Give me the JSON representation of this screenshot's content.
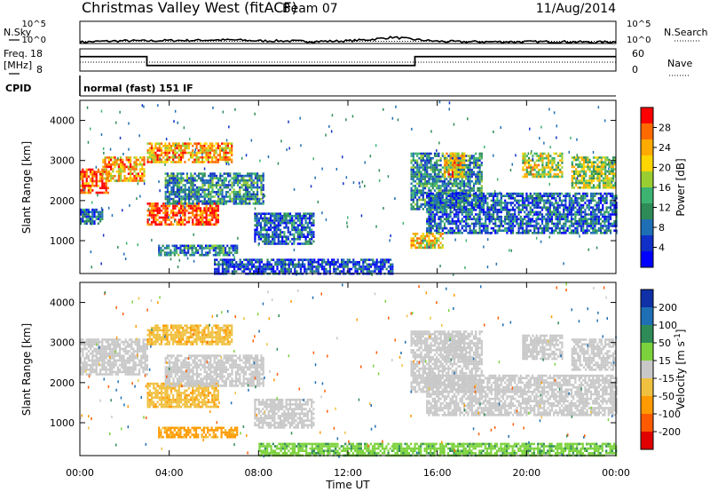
{
  "header": {
    "title": "Christmas Valley West (fitACF)",
    "beam": "Beam 07",
    "date": "11/Aug/2014"
  },
  "noise_panel": {
    "left_label": "N.Sky",
    "right_label": "N.Search",
    "left_ticks": [
      "10^5",
      "10^0"
    ],
    "right_ticks": [
      "10^5",
      "10^0"
    ]
  },
  "freq_panel": {
    "left_label_1": "Freq.",
    "left_label_2": "[MHz]",
    "right_label": "Nave",
    "left_ticks": [
      "18",
      "8"
    ],
    "right_ticks": [
      "60",
      "0"
    ]
  },
  "cpid_panel": {
    "label": "CPID",
    "value": "normal (fast) 151 IF"
  },
  "power_colorbar": {
    "label": "Power [dB]",
    "ticks": [
      "28",
      "24",
      "20",
      "16",
      "12",
      "8",
      "4"
    ],
    "colors": [
      "#ff0000",
      "#ff6a00",
      "#ffaa00",
      "#ffd500",
      "#9acd32",
      "#3cb371",
      "#2e8b57",
      "#1e6fb4",
      "#1030c8",
      "#0000ff"
    ]
  },
  "velocity_colorbar": {
    "label": "Velocity [m s-1]",
    "ticks": [
      "200",
      "100",
      "50",
      "15",
      "-15",
      "-50",
      "-100",
      "-200"
    ],
    "colors": [
      "#1030a8",
      "#1e6fb4",
      "#2e8b57",
      "#7cd23c",
      "#c8c8c8",
      "#f0c040",
      "#ff9a00",
      "#ff5a00",
      "#e00000"
    ]
  },
  "time_axis": {
    "label": "Time UT",
    "ticks": [
      "00:00",
      "04:00",
      "08:00",
      "12:00",
      "16:00",
      "20:00",
      "00:00"
    ]
  },
  "chart_data": [
    {
      "type": "line",
      "name": "noise",
      "title": "Christmas Valley West (fitACF)",
      "xlabel": "",
      "ylabel": "N.Sky",
      "xlim": [
        0,
        24
      ],
      "ylim_log10": [
        0,
        5
      ],
      "series": [
        {
          "name": "N.Sky",
          "x": [
            0,
            1,
            2,
            3,
            4,
            5,
            6,
            7,
            8,
            9,
            10,
            11,
            12,
            13,
            14,
            15,
            16,
            17,
            18,
            19,
            20,
            21,
            22,
            23,
            24
          ],
          "y_log10": [
            0.3,
            0.5,
            0.6,
            0.6,
            0.7,
            0.7,
            0.8,
            0.8,
            0.6,
            0.6,
            0.5,
            0.5,
            0.6,
            0.9,
            1.4,
            0.9,
            0.5,
            0.4,
            0.4,
            0.4,
            0.4,
            0.4,
            0.4,
            0.3,
            0.4
          ]
        }
      ]
    },
    {
      "type": "line",
      "name": "frequency",
      "xlabel": "",
      "ylabel": "Freq. [MHz]",
      "xlim": [
        0,
        24
      ],
      "ylim": [
        8,
        18
      ],
      "series": [
        {
          "name": "Freq.",
          "x": [
            0,
            3,
            3,
            15,
            15,
            24
          ],
          "y": [
            14.5,
            14.5,
            10.5,
            10.5,
            14.5,
            14.5
          ]
        },
        {
          "name": "Nave",
          "x": [
            0,
            24
          ],
          "y": [
            12,
            12
          ]
        }
      ]
    },
    {
      "type": "heatmap",
      "name": "power",
      "xlabel": "",
      "ylabel": "Slant Range [km]",
      "xlim": [
        0,
        24
      ],
      "ylim": [
        180,
        4500
      ],
      "yticks": [
        1000,
        2000,
        3000,
        4000
      ],
      "colorbar": "Power [dB]",
      "clim": [
        0,
        30
      ],
      "regions": [
        {
          "t0": 0.0,
          "t1": 1.3,
          "r0": 2200,
          "r1": 2800,
          "power": 26
        },
        {
          "t0": 0.0,
          "t1": 1.0,
          "r0": 1400,
          "r1": 1800,
          "power": 8
        },
        {
          "t0": 1.0,
          "t1": 2.9,
          "r0": 2500,
          "r1": 3100,
          "power": 22
        },
        {
          "t0": 3.0,
          "t1": 6.8,
          "r0": 2950,
          "r1": 3450,
          "power": 22
        },
        {
          "t0": 3.0,
          "t1": 6.2,
          "r0": 1400,
          "r1": 1950,
          "power": 27
        },
        {
          "t0": 3.8,
          "t1": 8.2,
          "r0": 1950,
          "r1": 2700,
          "power": 10
        },
        {
          "t0": 3.5,
          "t1": 7.0,
          "r0": 650,
          "r1": 900,
          "power": 9
        },
        {
          "t0": 7.8,
          "t1": 10.5,
          "r0": 900,
          "r1": 1700,
          "power": 7
        },
        {
          "t0": 6.0,
          "t1": 14.0,
          "r0": 180,
          "r1": 550,
          "power": 5
        },
        {
          "t0": 14.8,
          "t1": 18.0,
          "r0": 1800,
          "r1": 3200,
          "power": 10
        },
        {
          "t0": 15.5,
          "t1": 24.0,
          "r0": 1200,
          "r1": 2200,
          "power": 7
        },
        {
          "t0": 14.8,
          "t1": 16.2,
          "r0": 800,
          "r1": 1200,
          "power": 20
        },
        {
          "t0": 16.3,
          "t1": 17.2,
          "r0": 2600,
          "r1": 3200,
          "power": 22
        },
        {
          "t0": 19.8,
          "t1": 21.6,
          "r0": 2600,
          "r1": 3200,
          "power": 18
        },
        {
          "t0": 22.0,
          "t1": 24.0,
          "r0": 2300,
          "r1": 3100,
          "power": 16
        }
      ]
    },
    {
      "type": "heatmap",
      "name": "velocity",
      "xlabel": "Time UT",
      "ylabel": "Slant Range [km]",
      "xlim": [
        0,
        24
      ],
      "ylim": [
        180,
        4500
      ],
      "yticks": [
        1000,
        2000,
        3000,
        4000
      ],
      "colorbar": "Velocity [m s-1]",
      "clim": [
        -250,
        250
      ],
      "regions": [
        {
          "t0": 0.0,
          "t1": 3.0,
          "r0": 2200,
          "r1": 3100,
          "velocity": 0
        },
        {
          "t0": 3.0,
          "t1": 6.8,
          "r0": 2950,
          "r1": 3450,
          "velocity": -40
        },
        {
          "t0": 3.0,
          "t1": 6.2,
          "r0": 1400,
          "r1": 2000,
          "velocity": -40
        },
        {
          "t0": 3.8,
          "t1": 8.2,
          "r0": 1950,
          "r1": 2700,
          "velocity": 0
        },
        {
          "t0": 3.5,
          "t1": 7.0,
          "r0": 650,
          "r1": 900,
          "velocity": -60
        },
        {
          "t0": 7.8,
          "t1": 10.5,
          "r0": 900,
          "r1": 1600,
          "velocity": 0
        },
        {
          "t0": 8.0,
          "t1": 14.0,
          "r0": 180,
          "r1": 500,
          "velocity": 40
        },
        {
          "t0": 14.8,
          "t1": 18.0,
          "r0": 1800,
          "r1": 3300,
          "velocity": 0
        },
        {
          "t0": 15.5,
          "t1": 24.0,
          "r0": 1200,
          "r1": 2200,
          "velocity": 0
        },
        {
          "t0": 16.3,
          "t1": 17.2,
          "r0": 2600,
          "r1": 3200,
          "velocity": 0
        },
        {
          "t0": 19.8,
          "t1": 21.6,
          "r0": 2600,
          "r1": 3200,
          "velocity": 0
        },
        {
          "t0": 22.0,
          "t1": 24.0,
          "r0": 2300,
          "r1": 3100,
          "velocity": 0
        },
        {
          "t0": 14.0,
          "t1": 24.0,
          "r0": 180,
          "r1": 500,
          "velocity": 40
        }
      ]
    }
  ]
}
